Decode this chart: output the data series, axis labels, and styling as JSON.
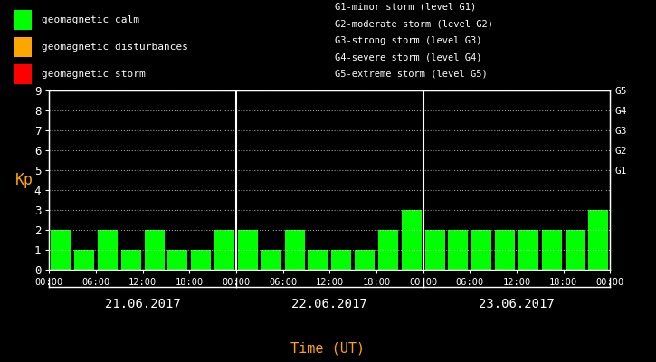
{
  "kp_values": [
    2,
    1,
    2,
    1,
    2,
    1,
    1,
    2,
    2,
    1,
    2,
    1,
    1,
    1,
    2,
    3,
    2,
    2,
    2,
    2,
    2,
    2,
    2,
    3
  ],
  "bar_color": "#00ff00",
  "bg_color": "#000000",
  "text_color": "#ffffff",
  "orange_color": "#ffa500",
  "day_labels": [
    "21.06.2017",
    "22.06.2017",
    "23.06.2017"
  ],
  "ylabel": "Kp",
  "xlabel": "Time (UT)",
  "ylim": [
    0,
    9
  ],
  "yticks": [
    0,
    1,
    2,
    3,
    4,
    5,
    6,
    7,
    8,
    9
  ],
  "legend_items": [
    {
      "label": "geomagnetic calm",
      "color": "#00ff00"
    },
    {
      "label": "geomagnetic disturbances",
      "color": "#ffa500"
    },
    {
      "label": "geomagnetic storm",
      "color": "#ff0000"
    }
  ],
  "storm_levels": [
    "G1-minor storm (level G1)",
    "G2-moderate storm (level G2)",
    "G3-strong storm (level G3)",
    "G4-severe storm (level G4)",
    "G5-extreme storm (level G5)"
  ],
  "right_axis_labels": [
    "G5",
    "G4",
    "G3",
    "G2",
    "G1"
  ],
  "right_axis_positions": [
    9,
    8,
    7,
    6,
    5
  ]
}
